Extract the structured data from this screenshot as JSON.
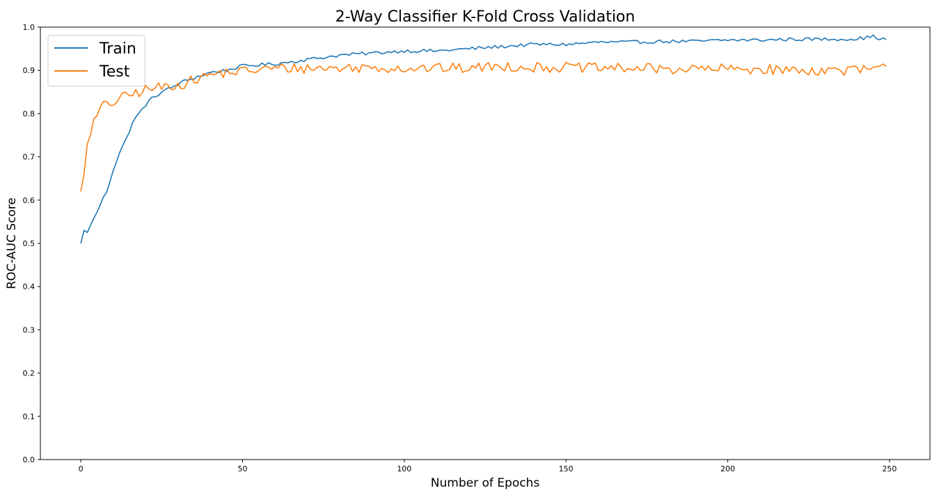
{
  "chart_data": {
    "type": "line",
    "title": "2-Way Classifier K-Fold Cross Validation",
    "xlabel": "Number of Epochs",
    "ylabel": "ROC-AUC Score",
    "xlim": [
      -12.5,
      262.5
    ],
    "ylim": [
      0.0,
      1.0
    ],
    "xticks": [
      0,
      50,
      100,
      150,
      200,
      250
    ],
    "yticks": [
      0.0,
      0.1,
      0.2,
      0.3,
      0.4,
      0.5,
      0.6,
      0.7,
      0.8,
      0.9,
      1.0
    ],
    "grid": false,
    "legend_position": "upper-left",
    "epochs": 250,
    "series": [
      {
        "name": "Train",
        "color": "#1f77b4",
        "keypoints": [
          [
            0,
            0.5
          ],
          [
            1,
            0.53
          ],
          [
            2,
            0.525
          ],
          [
            3,
            0.54
          ],
          [
            4,
            0.56
          ],
          [
            5,
            0.57
          ],
          [
            6,
            0.59
          ],
          [
            8,
            0.62
          ],
          [
            10,
            0.67
          ],
          [
            12,
            0.71
          ],
          [
            14,
            0.74
          ],
          [
            16,
            0.78
          ],
          [
            18,
            0.8
          ],
          [
            20,
            0.82
          ],
          [
            22,
            0.835
          ],
          [
            25,
            0.85
          ],
          [
            28,
            0.86
          ],
          [
            32,
            0.875
          ],
          [
            36,
            0.885
          ],
          [
            40,
            0.895
          ],
          [
            45,
            0.9
          ],
          [
            50,
            0.91
          ],
          [
            60,
            0.915
          ],
          [
            70,
            0.925
          ],
          [
            80,
            0.935
          ],
          [
            90,
            0.94
          ],
          [
            100,
            0.945
          ],
          [
            110,
            0.945
          ],
          [
            120,
            0.95
          ],
          [
            130,
            0.955
          ],
          [
            140,
            0.96
          ],
          [
            150,
            0.96
          ],
          [
            160,
            0.965
          ],
          [
            170,
            0.965
          ],
          [
            180,
            0.967
          ],
          [
            190,
            0.967
          ],
          [
            200,
            0.97
          ],
          [
            210,
            0.97
          ],
          [
            220,
            0.972
          ],
          [
            230,
            0.972
          ],
          [
            240,
            0.973
          ],
          [
            245,
            0.978
          ],
          [
            249,
            0.97
          ]
        ],
        "noise": 0.004
      },
      {
        "name": "Test",
        "color": "#ff7f0e",
        "keypoints": [
          [
            0,
            0.62
          ],
          [
            1,
            0.66
          ],
          [
            2,
            0.73
          ],
          [
            3,
            0.76
          ],
          [
            4,
            0.78
          ],
          [
            5,
            0.79
          ],
          [
            6,
            0.815
          ],
          [
            8,
            0.82
          ],
          [
            10,
            0.825
          ],
          [
            12,
            0.835
          ],
          [
            14,
            0.84
          ],
          [
            16,
            0.845
          ],
          [
            18,
            0.85
          ],
          [
            20,
            0.855
          ],
          [
            24,
            0.86
          ],
          [
            28,
            0.865
          ],
          [
            32,
            0.87
          ],
          [
            36,
            0.88
          ],
          [
            40,
            0.89
          ],
          [
            45,
            0.895
          ],
          [
            50,
            0.898
          ],
          [
            60,
            0.905
          ],
          [
            70,
            0.905
          ],
          [
            80,
            0.905
          ],
          [
            90,
            0.907
          ],
          [
            100,
            0.905
          ],
          [
            110,
            0.905
          ],
          [
            120,
            0.905
          ],
          [
            130,
            0.91
          ],
          [
            140,
            0.907
          ],
          [
            150,
            0.907
          ],
          [
            160,
            0.905
          ],
          [
            170,
            0.905
          ],
          [
            180,
            0.903
          ],
          [
            190,
            0.903
          ],
          [
            200,
            0.903
          ],
          [
            210,
            0.903
          ],
          [
            220,
            0.9
          ],
          [
            230,
            0.9
          ],
          [
            240,
            0.9
          ],
          [
            249,
            0.905
          ]
        ],
        "noise": 0.012
      }
    ]
  }
}
